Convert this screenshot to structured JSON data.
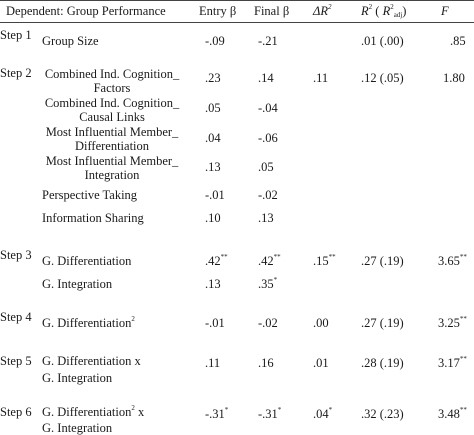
{
  "header": {
    "dependent": "Dependent: Group Performance",
    "entry": "Entry β",
    "final": "Final β",
    "delta_r2": "ΔR",
    "delta_r2_sup": "2",
    "r2_label": "R",
    "r2_sup": "2",
    "r2_open": " ( ",
    "r2_adj_r": "R",
    "r2_adj_sup": "2",
    "r2_adj_sub": "adj",
    "r2_close": ")",
    "f": "F"
  },
  "rows": [
    {
      "step": "Step 1",
      "label": "Group Size",
      "entry": "-.09",
      "final": "-.21",
      "dr2": "",
      "r2": ".01 (.00)",
      "f": ".85"
    },
    {
      "step": "Step 2",
      "label1": "Combined Ind. Cognition_",
      "label2": "Factors",
      "entry": ".23",
      "final": ".14",
      "dr2": ".11",
      "r2": ".12 (.05)",
      "f": "1.80"
    },
    {
      "label1": "Combined Ind. Cognition_",
      "label2": "Causal Links",
      "entry": ".05",
      "final": "-.04"
    },
    {
      "label1": "Most Influential Member_",
      "label2": "Differentiation",
      "entry": ".04",
      "final": "-.06"
    },
    {
      "label1": "Most Influential Member_",
      "label2": "Integration",
      "entry": ".13",
      "final": ".05"
    },
    {
      "label": "Perspective Taking",
      "entry": "-.01",
      "final": "-.02"
    },
    {
      "label": "Information Sharing",
      "entry": ".10",
      "final": ".13"
    },
    {
      "step": "Step 3",
      "label": "G. Differentiation",
      "entry": ".42",
      "entry_sig": "**",
      "final": ".42",
      "final_sig": "**",
      "dr2": ".15",
      "dr2_sig": "**",
      "r2": ".27 (.19)",
      "f": "3.65",
      "f_sig": "**"
    },
    {
      "label": "G. Integration",
      "entry": ".13",
      "final": ".35",
      "final_sig": "*"
    },
    {
      "step": "Step 4",
      "label": "G. Differentiation",
      "label_sup": "2",
      "entry": "-.01",
      "final": "-.02",
      "dr2": ".00",
      "r2": ".27 (.19)",
      "f": "3.25",
      "f_sig": "**"
    },
    {
      "step": "Step 5",
      "label1": "G. Differentiation x",
      "label2": "G. Integration",
      "entry": ".11",
      "final": ".16",
      "dr2": ".01",
      "r2": ".28 (.19)",
      "f": "3.17",
      "f_sig": "**"
    },
    {
      "step": "Step 6",
      "label1a": "G. Differentiation",
      "label1_sup": "2",
      "label1b": " x",
      "label2": "G. Integration",
      "entry": "-.31",
      "entry_sig": "*",
      "final": "-.31",
      "final_sig": "*",
      "dr2": ".04",
      "dr2_sig": "*",
      "r2": ".32 (.23)",
      "f": "3.48",
      "f_sig": "**"
    }
  ]
}
